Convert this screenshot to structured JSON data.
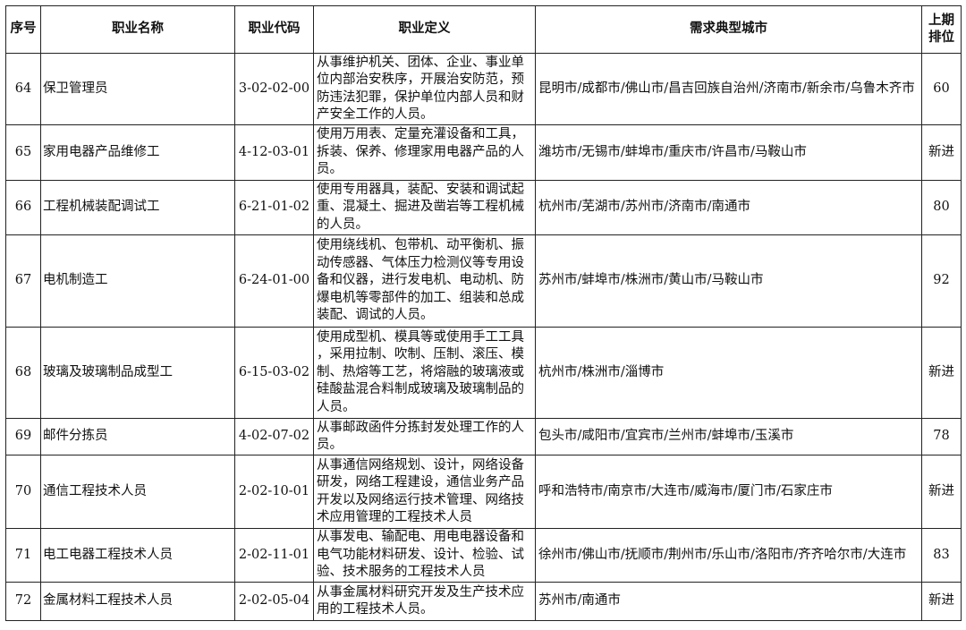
{
  "headers": [
    "序号",
    "职业名称",
    "职业代码",
    "职业定义",
    "需求典型城市",
    "上期排位"
  ],
  "rows": [
    {
      "no": "64",
      "name": "保卫管理员",
      "code": "3-02-02-00",
      "definition": "从事维护机关、团体、企业、事业单位内部治安秩序，开展治安防范，预防违法犯罪，保护单位内部人员和财产安全工作的人员。",
      "cities": "昆明市/成都市/佛山市/昌吉回族自治州/济南市/新余市/乌鲁木齐市",
      "prev": "60"
    },
    {
      "no": "65",
      "name": "家用电器产品维修工",
      "code": "4-12-03-01",
      "definition": "使用万用表、定量充灌设备和工具，拆装、保养、修理家用电器产品的人员。",
      "cities": "潍坊市/无锡市/蚌埠市/重庆市/许昌市/马鞍山市",
      "prev": "新进"
    },
    {
      "no": "66",
      "name": "工程机械装配调试工",
      "code": "6-21-01-02",
      "definition": "使用专用器具，装配、安装和调试起重、混凝土、掘进及凿岩等工程机械的人员。",
      "cities": "杭州市/芜湖市/苏州市/济南市/南通市",
      "prev": "80"
    },
    {
      "no": "67",
      "name": "电机制造工",
      "code": "6-24-01-00",
      "definition": "使用绕线机、包带机、动平衡机、振动传感器、气体压力检测仪等专用设备和仪器，进行发电机、电动机、防爆电机等零部件的加工、组装和总成装配、调试的人员。",
      "cities": "苏州市/蚌埠市/株洲市/黄山市/马鞍山市",
      "prev": "92"
    },
    {
      "no": "68",
      "name": "玻璃及玻璃制品成型工",
      "code": "6-15-03-02",
      "definition": "使用成型机、模具等或使用手工工具，采用拉制、吹制、压制、滚压、模制、热熔等工艺，将熔融的玻璃液或硅酸盐混合料制成玻璃及玻璃制品的人员。",
      "cities": "杭州市/株洲市/淄博市",
      "prev": "新进"
    },
    {
      "no": "69",
      "name": "邮件分拣员",
      "code": "4-02-07-02",
      "definition": "从事邮政函件分拣封发处理工作的人员。",
      "cities": "包头市/咸阳市/宜宾市/兰州市/蚌埠市/玉溪市",
      "prev": "78"
    },
    {
      "no": "70",
      "name": "通信工程技术人员",
      "code": "2-02-10-01",
      "definition": "从事通信网络规划、设计，网络设备研发，网络工程建设，通信业务产品开发以及网络运行技术管理、网络技术应用管理的工程技术人员",
      "cities": "呼和浩特市/南京市/大连市/威海市/厦门市/石家庄市",
      "prev": "新进"
    },
    {
      "no": "71",
      "name": "电工电器工程技术人员",
      "code": "2-02-11-01",
      "definition": "从事发电、输配电、用电电器设备和电气功能材料研发、设计、检验、试验、技术服务的工程技术人员",
      "cities": "徐州市/佛山市/抚顺市/荆州市/乐山市/洛阳市/齐齐哈尔市/大连市",
      "prev": "83"
    },
    {
      "no": "72",
      "name": "金属材料工程技术人员",
      "code": "2-02-05-04",
      "definition": "从事金属材料研究开发及生产技术应用的工程技术人员。",
      "cities": "苏州市/南通市",
      "prev": "新进"
    }
  ]
}
